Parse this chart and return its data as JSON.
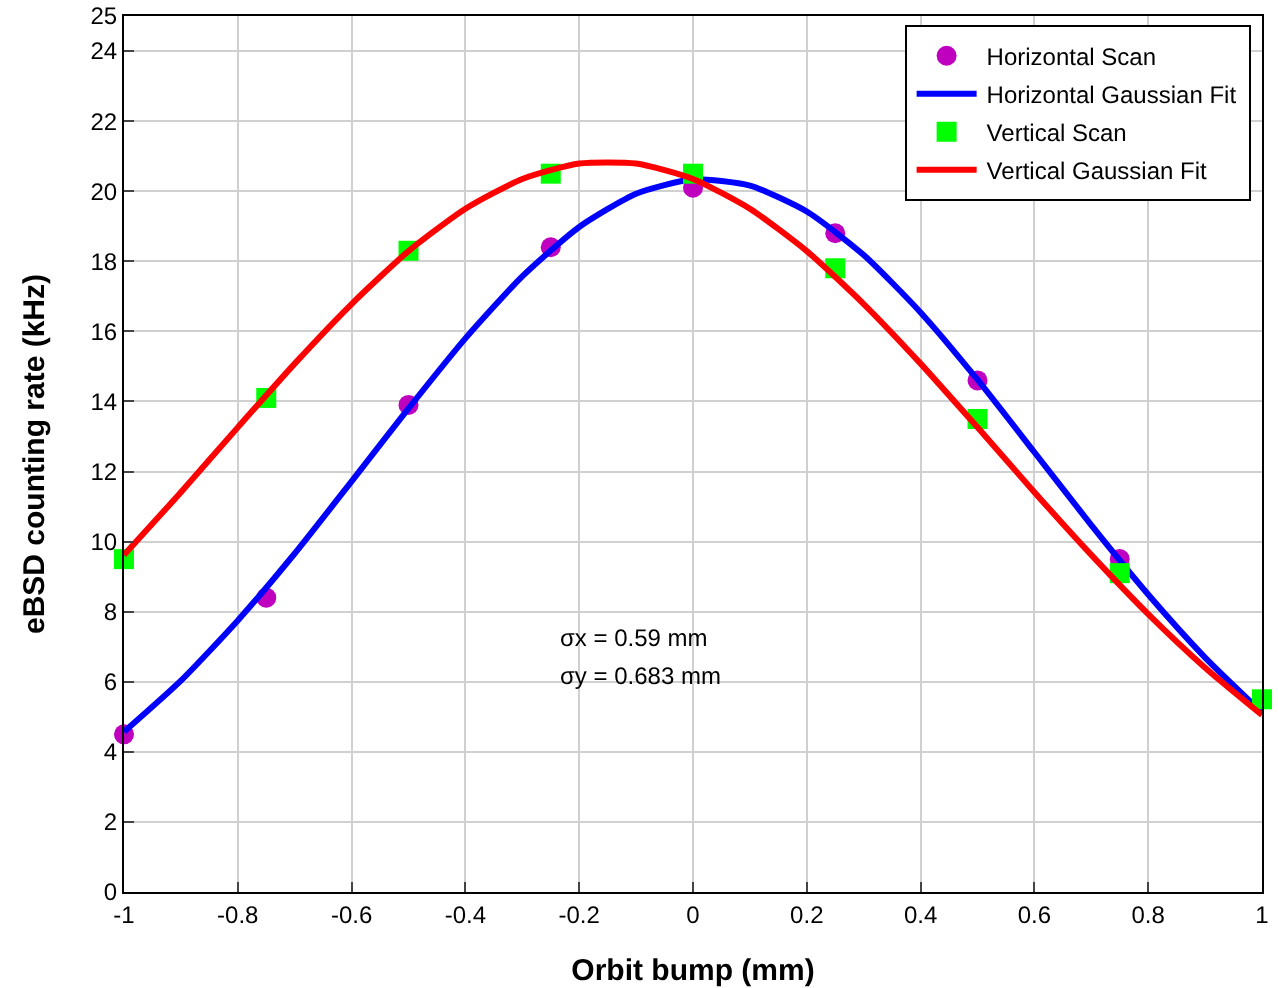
{
  "chart_data": {
    "type": "scatter",
    "xlabel": "Orbit bump (mm)",
    "ylabel": "eBSD counting rate (kHz)",
    "xlim": [
      -1,
      1
    ],
    "xticks": [
      -1,
      -0.8,
      -0.6,
      -0.4,
      -0.2,
      0,
      0.2,
      0.4,
      0.6,
      0.8,
      1
    ],
    "ylim": [
      0,
      25
    ],
    "yticks": [
      0,
      2,
      4,
      6,
      8,
      10,
      12,
      14,
      16,
      18,
      20,
      22,
      24,
      25
    ],
    "grid": true,
    "legend": "top right",
    "line_style": "solid",
    "annotations": [
      "σx = 0.59 mm",
      "σy = 0.683 mm"
    ],
    "series": [
      {
        "name": "Horizontal Scan",
        "marker": "circle",
        "color": "#bf00bf",
        "x": [
          -1,
          -0.75,
          -0.5,
          -0.25,
          0,
          0.25,
          0.5,
          0.75
        ],
        "values": [
          4.5,
          8.4,
          13.9,
          18.4,
          20.1,
          18.8,
          14.6,
          9.5
        ]
      },
      {
        "name": "Horizontal Gaussian Fit",
        "type": "line",
        "marker": "none",
        "color": "#0000ff",
        "x": [
          -1,
          -0.9,
          -0.8,
          -0.7,
          -0.6,
          -0.5,
          -0.4,
          -0.3,
          -0.2,
          -0.1,
          0,
          0.1,
          0.2,
          0.3,
          0.4,
          0.5,
          0.6,
          0.7,
          0.8,
          0.9,
          1
        ],
        "values": [
          4.57,
          6.03,
          7.75,
          9.66,
          11.72,
          13.8,
          15.8,
          17.57,
          18.98,
          19.93,
          20.34,
          20.16,
          19.42,
          18.18,
          16.54,
          14.62,
          12.55,
          10.47,
          8.49,
          6.69,
          5.12
        ]
      },
      {
        "name": "Vertical Scan",
        "marker": "square",
        "color": "#00ff00",
        "x": [
          -1,
          -0.75,
          -0.5,
          -0.25,
          0,
          0.25,
          0.5,
          0.75,
          1
        ],
        "values": [
          9.5,
          14.1,
          18.3,
          20.5,
          20.5,
          17.8,
          13.5,
          9.1,
          5.5
        ]
      },
      {
        "name": "Vertical Gaussian Fit",
        "type": "line",
        "marker": "none",
        "color": "#ff0000",
        "x": [
          -1,
          -0.9,
          -0.8,
          -0.7,
          -0.6,
          -0.5,
          -0.4,
          -0.3,
          -0.2,
          -0.1,
          0,
          0.1,
          0.2,
          0.3,
          0.4,
          0.5,
          0.6,
          0.7,
          0.8,
          0.9,
          1
        ],
        "values": [
          9.62,
          11.41,
          13.26,
          15.08,
          16.78,
          18.29,
          19.5,
          20.35,
          20.79,
          20.79,
          20.35,
          19.5,
          18.29,
          16.78,
          15.08,
          13.26,
          11.41,
          9.62,
          7.93,
          6.4,
          5.05
        ]
      }
    ]
  }
}
